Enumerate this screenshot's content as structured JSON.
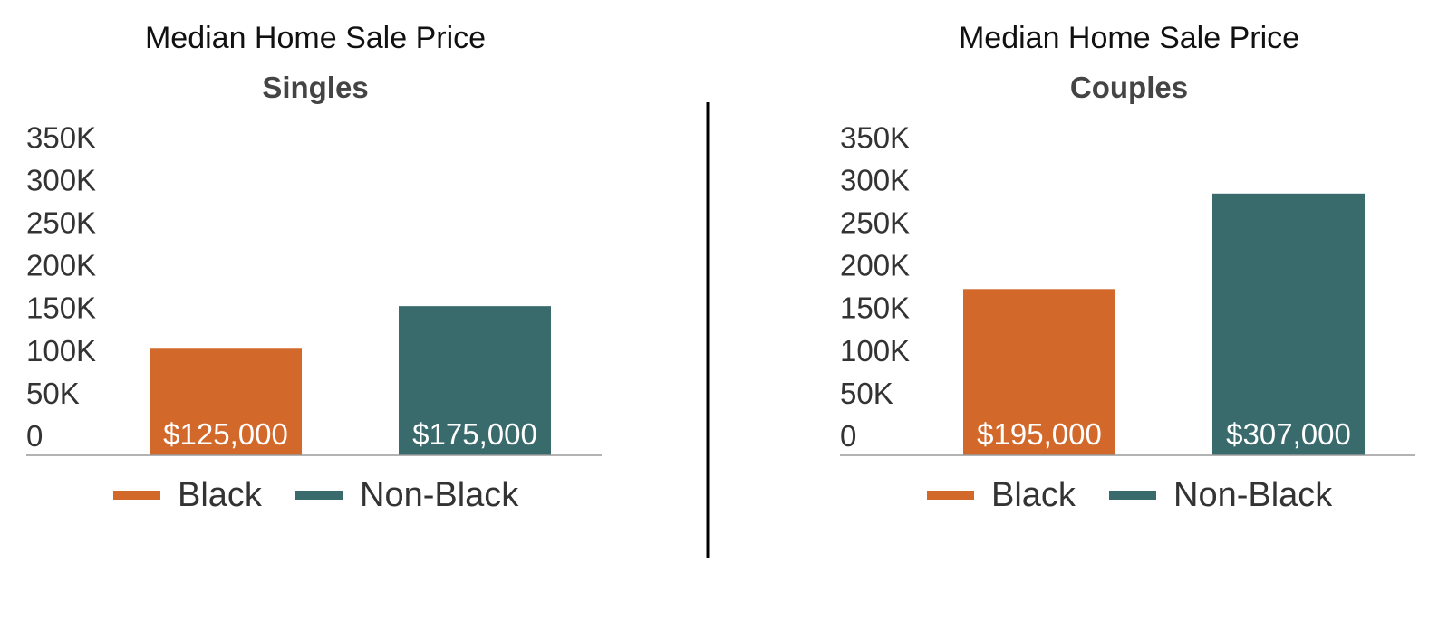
{
  "colors": {
    "black_series": "#D2682A",
    "non_black_series": "#396A6C",
    "text": "#333333",
    "axis": "#9a9a9a",
    "divider": "#000000",
    "data_label": "#ffffff"
  },
  "chart_data": [
    {
      "type": "bar",
      "title": "Median Home Sale Price",
      "subtitle": "Singles",
      "categories": [
        "Black",
        "Non-Black"
      ],
      "values": [
        125000,
        175000
      ],
      "data_labels": [
        "$125,000",
        "$175,000"
      ],
      "series_colors": [
        "#D2682A",
        "#396A6C"
      ],
      "ylim": [
        0,
        350000
      ],
      "yticks": [
        0,
        50000,
        100000,
        150000,
        200000,
        250000,
        300000,
        350000
      ],
      "ytick_labels": [
        "0",
        "50K",
        "100K",
        "150K",
        "200K",
        "250K",
        "300K",
        "350K"
      ],
      "legend": [
        "Black",
        "Non-Black"
      ],
      "legend_position": "bottom",
      "grid": false
    },
    {
      "type": "bar",
      "title": "Median Home Sale Price",
      "subtitle": "Couples",
      "categories": [
        "Black",
        "Non-Black"
      ],
      "values": [
        195000,
        307000
      ],
      "data_labels": [
        "$195,000",
        "$307,000"
      ],
      "series_colors": [
        "#D2682A",
        "#396A6C"
      ],
      "ylim": [
        0,
        350000
      ],
      "yticks": [
        0,
        50000,
        100000,
        150000,
        200000,
        250000,
        300000,
        350000
      ],
      "ytick_labels": [
        "0",
        "50K",
        "100K",
        "150K",
        "200K",
        "250K",
        "300K",
        "350K"
      ],
      "legend": [
        "Black",
        "Non-Black"
      ],
      "legend_position": "bottom",
      "grid": false
    }
  ]
}
